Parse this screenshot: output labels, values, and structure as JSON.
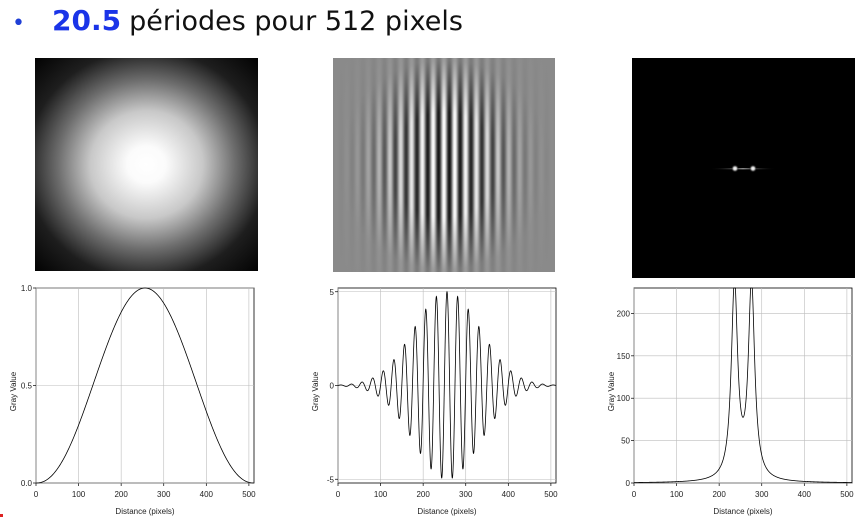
{
  "slide": {
    "bullet": "•",
    "highlight": "20.5",
    "rest_text": "périodes pour 512 pixels"
  },
  "plots": [
    {
      "ylabel": "Gray Value",
      "xlabel": "Distance (pixels)",
      "x_ticks": [
        "0",
        "100",
        "200",
        "300",
        "400",
        "500"
      ],
      "y_ticks": [
        "0.0",
        "0.5",
        "1.0"
      ]
    },
    {
      "ylabel": "Gray Value",
      "xlabel": "Distance (pixels)",
      "x_ticks": [
        "0",
        "100",
        "200",
        "300",
        "400",
        "500"
      ],
      "y_ticks": [
        "-5",
        "0",
        "5"
      ]
    },
    {
      "ylabel": "Gray Value",
      "xlabel": "Distance (pixels)",
      "x_ticks": [
        "0",
        "100",
        "200",
        "300",
        "400",
        "500"
      ],
      "y_ticks": [
        "0",
        "50",
        "100",
        "150",
        "200"
      ]
    }
  ]
}
